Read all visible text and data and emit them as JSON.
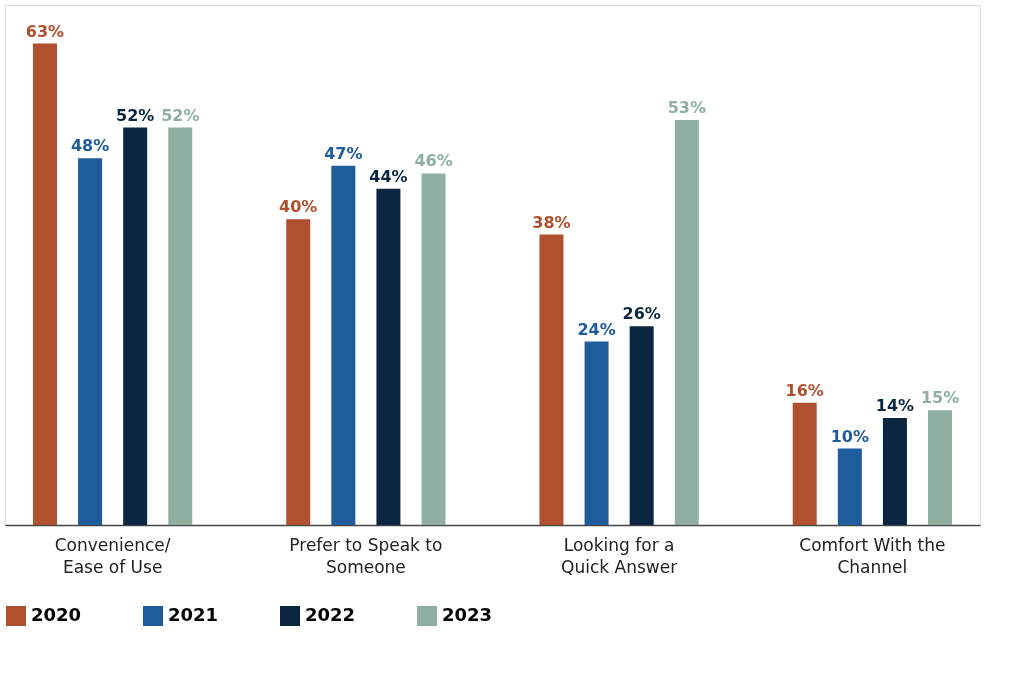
{
  "chart_data": {
    "type": "bar",
    "categories": [
      "Convenience/\nEase of Use",
      "Prefer to Speak to\nSomeone",
      "Looking for a\nQuick Answer",
      "Comfort With the\nChannel"
    ],
    "series": [
      {
        "name": "2020",
        "color": "#b0502f",
        "values": [
          63,
          40,
          38,
          16
        ],
        "value_labels": [
          "63%",
          "40%",
          "38%",
          "16%"
        ]
      },
      {
        "name": "2021",
        "color": "#1f5c9c",
        "values": [
          48,
          47,
          24,
          10
        ],
        "value_labels": [
          "48%",
          "47%",
          "24%",
          "10%"
        ]
      },
      {
        "name": "2022",
        "color": "#0b2640",
        "values": [
          52,
          44,
          26,
          14
        ],
        "value_labels": [
          "52%",
          "44%",
          "26%",
          "14%"
        ]
      },
      {
        "name": "2023",
        "color": "#8fb0a0",
        "values": [
          52,
          46,
          53,
          15
        ],
        "value_labels": [
          "52%",
          "46%",
          "53%",
          "15%"
        ]
      }
    ],
    "legend": "bottom",
    "grid": false
  }
}
